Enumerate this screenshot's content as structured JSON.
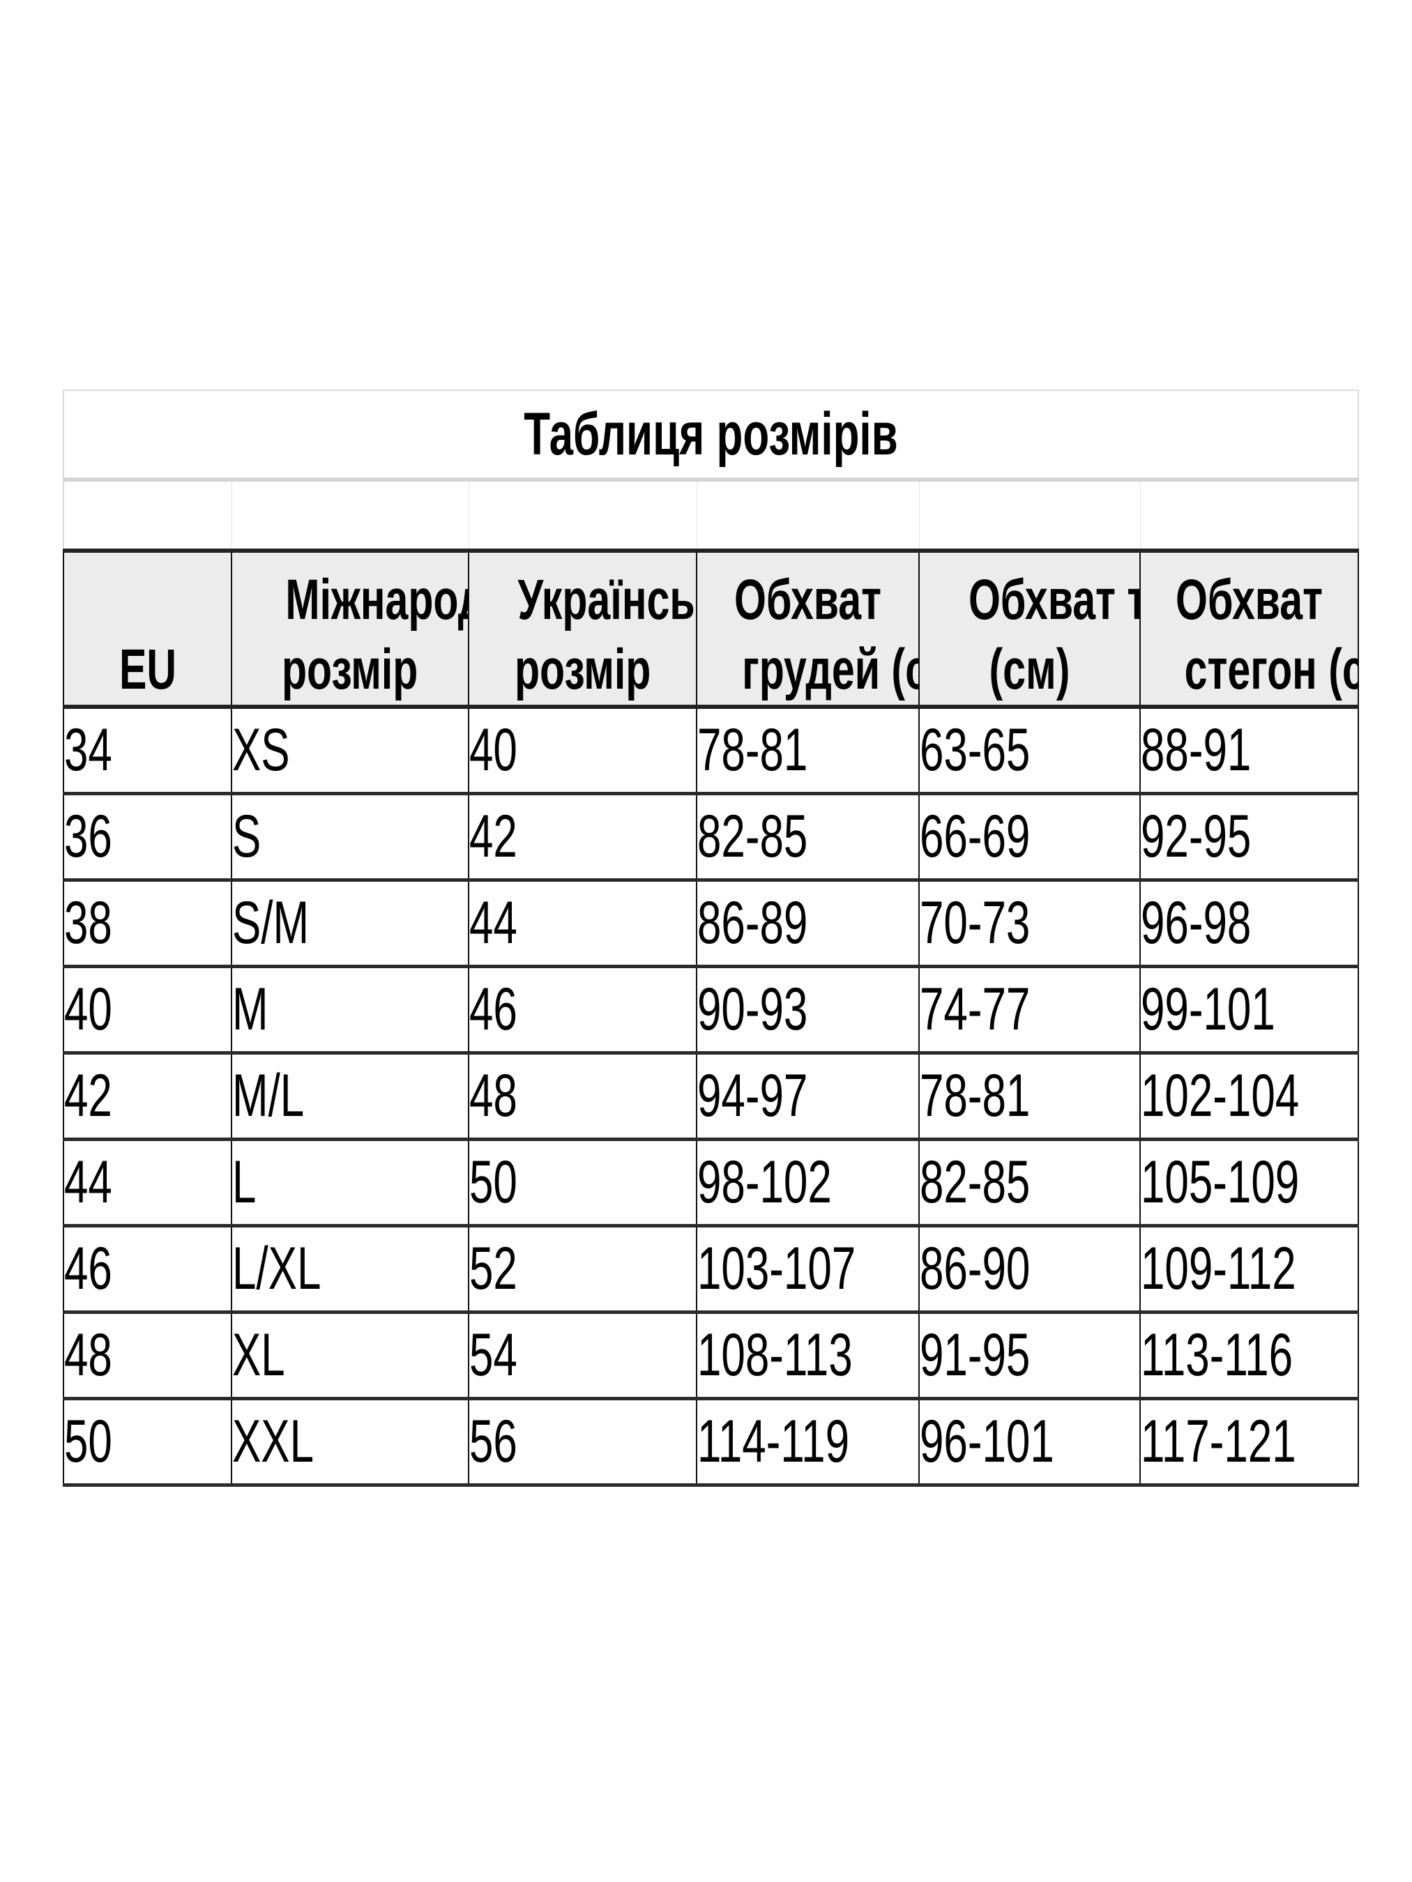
{
  "title": "Таблиця розмірів",
  "headers": [
    [
      "",
      "EU"
    ],
    [
      "Міжнародний",
      "розмір"
    ],
    [
      "Український",
      "розмір"
    ],
    [
      "Обхват",
      "грудей (см)"
    ],
    [
      "Обхват талії",
      "(см)"
    ],
    [
      "Обхват",
      "стегон (см)"
    ]
  ],
  "rows": [
    [
      "34",
      "XS",
      "40",
      "78-81",
      "63-65",
      "88-91"
    ],
    [
      "36",
      "S",
      "42",
      "82-85",
      "66-69",
      "92-95"
    ],
    [
      "38",
      "S/M",
      "44",
      "86-89",
      "70-73",
      "96-98"
    ],
    [
      "40",
      "M",
      "46",
      "90-93",
      "74-77",
      "99-101"
    ],
    [
      "42",
      "M/L",
      "48",
      "94-97",
      "78-81",
      "102-104"
    ],
    [
      "44",
      "L",
      "50",
      "98-102",
      "82-85",
      "105-109"
    ],
    [
      "46",
      "L/XL",
      "52",
      "103-107",
      "86-90",
      "109-112"
    ],
    [
      "48",
      "XL",
      "54",
      "108-113",
      "91-95",
      "113-116"
    ],
    [
      "50",
      "XXL",
      "56",
      "114-119",
      "96-101",
      "117-121"
    ]
  ],
  "colors": {
    "header_bg": "#ececec",
    "border": "#222222",
    "text": "#000000"
  }
}
